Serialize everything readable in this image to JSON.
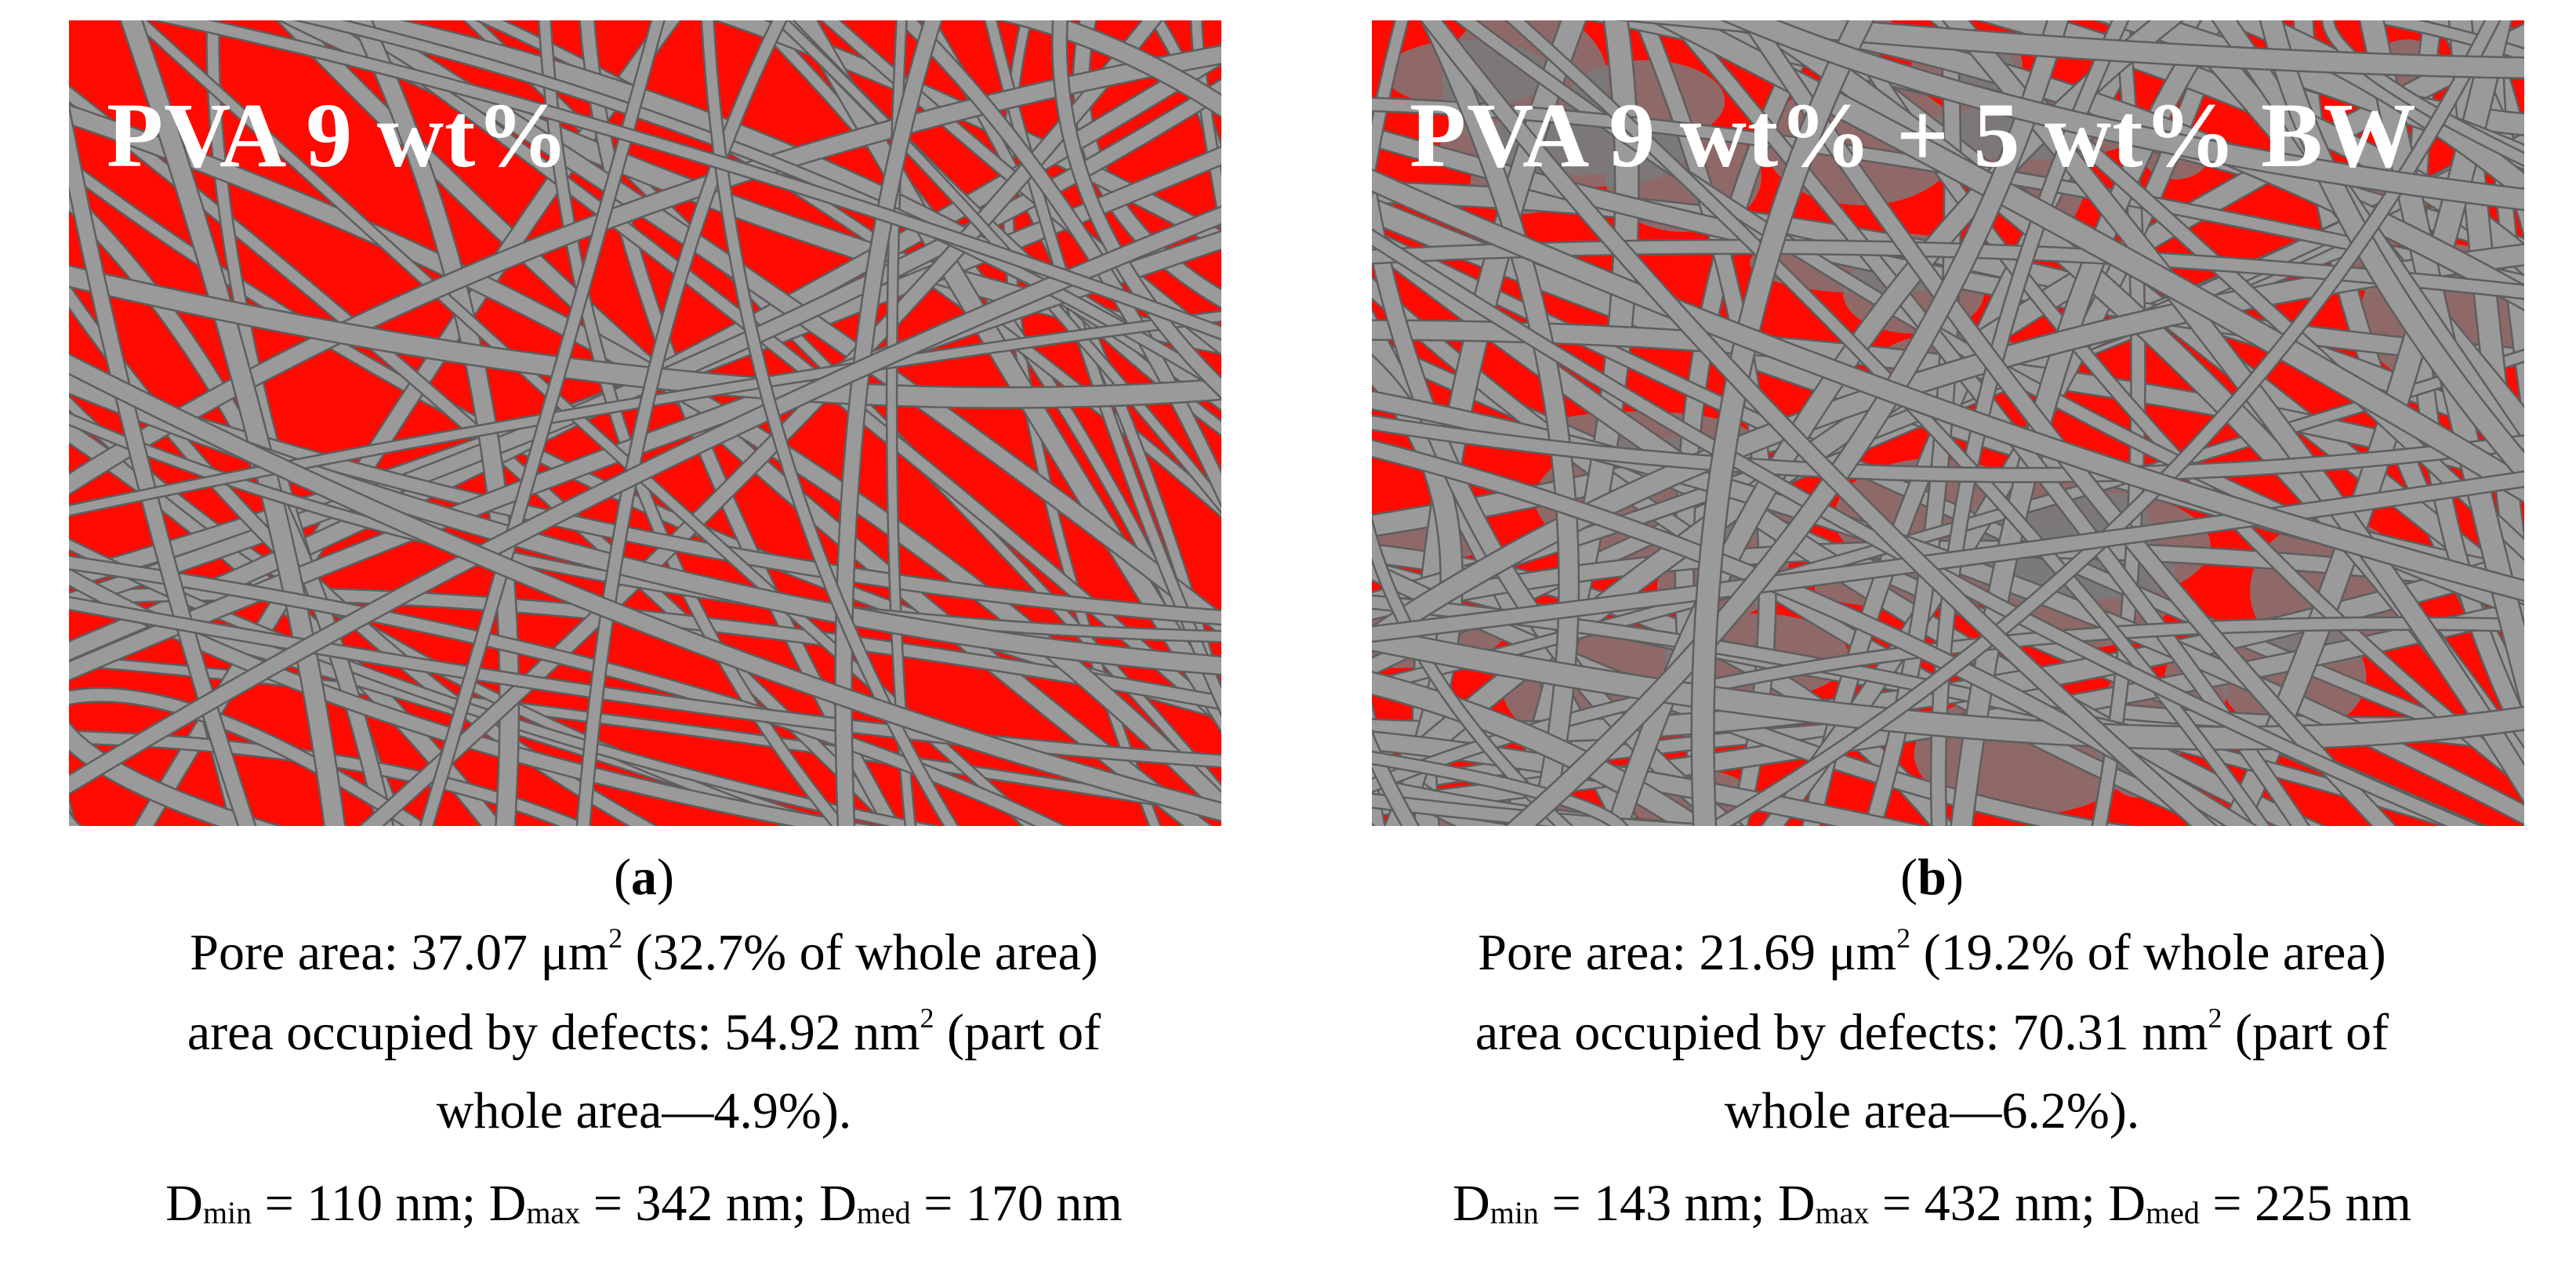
{
  "panels": [
    {
      "image_label": "PVA 9 wt%",
      "letter": "a",
      "pore_value": "37.07",
      "pore_unit": "μm",
      "pore_sup": "2",
      "pore_rest": " (32.7% of whole area)",
      "defects_label": "area occupied by defects: ",
      "defects_value": "54.92 nm",
      "defects_sup": "2",
      "defects_rest": " (part of",
      "defects_line2": "whole area—4.9%).",
      "dmin": "110 nm",
      "dmax": "342 nm",
      "dmed": "170 nm"
    },
    {
      "image_label": "PVA 9 wt% + 5 wt% BW",
      "letter": "b",
      "pore_value": "21.69",
      "pore_unit": "μm",
      "pore_sup": "2",
      "pore_rest": " (19.2% of whole area)",
      "defects_label": "area occupied by defects: ",
      "defects_value": "70.31 nm",
      "defects_sup": "2",
      "defects_rest": " (part of",
      "defects_line2": "whole area—6.2%).",
      "dmin": "143 nm",
      "dmax": "432 nm",
      "dmed": "225 nm"
    }
  ],
  "labels": {
    "pore_prefix": "Pore area: ",
    "d_letter": "D",
    "min_sub": "min",
    "max_sub": "max",
    "med_sub": "med",
    "eq": " = ",
    "sep": "; ",
    "paren_open": "(",
    "paren_close": ")"
  },
  "colors": {
    "pore_fill": "#ff0a00",
    "fiber": "#9a9a9a",
    "fiber_edge": "#5e5e5e"
  }
}
